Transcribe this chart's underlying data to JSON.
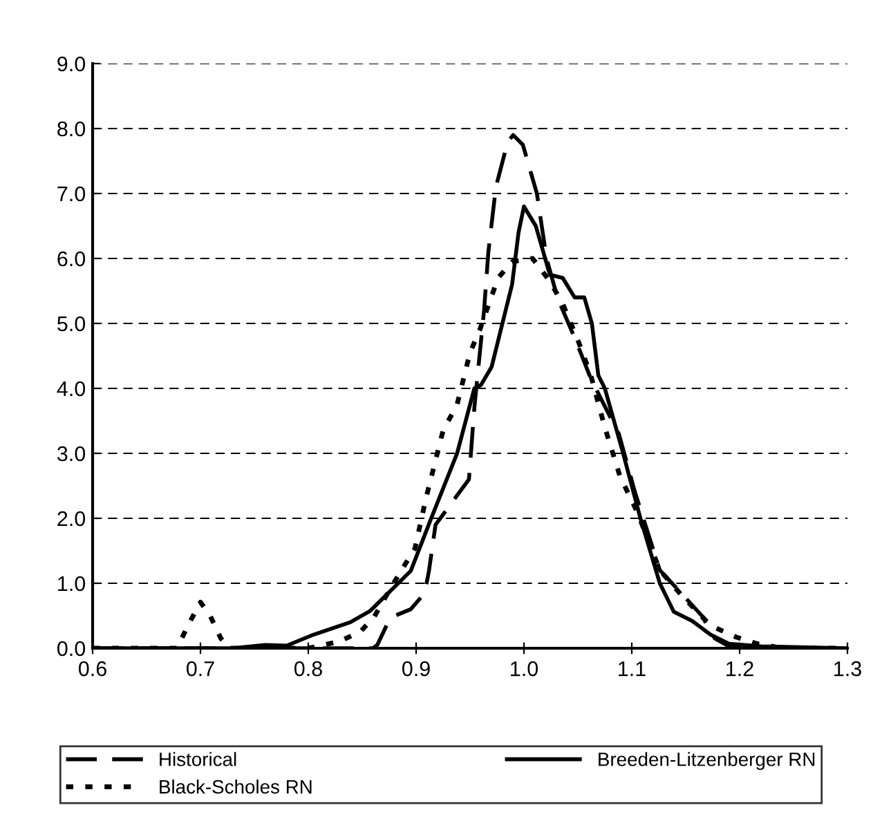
{
  "chart_data": {
    "type": "line",
    "xlim": [
      0.6,
      1.3
    ],
    "xticks": [
      {
        "value": 0.6,
        "label": "0.6"
      },
      {
        "value": 0.7,
        "label": "0.7"
      },
      {
        "value": 0.8,
        "label": "0.8"
      },
      {
        "value": 0.9,
        "label": "0.9"
      },
      {
        "value": 1.0,
        "label": "1.0"
      },
      {
        "value": 1.1,
        "label": "1.1"
      },
      {
        "value": 1.2,
        "label": "1.2"
      },
      {
        "value": 1.3,
        "label": "1.3"
      }
    ],
    "ylim": [
      0,
      9
    ],
    "yticks": [
      {
        "value": 0,
        "label": "0.0"
      },
      {
        "value": 1,
        "label": "1.0"
      },
      {
        "value": 2,
        "label": "2.0"
      },
      {
        "value": 3,
        "label": "3.0"
      },
      {
        "value": 4,
        "label": "4.0"
      },
      {
        "value": 5,
        "label": "5.0"
      },
      {
        "value": 6,
        "label": "6.0"
      },
      {
        "value": 7,
        "label": "7.0"
      },
      {
        "value": 8,
        "label": "8.0"
      },
      {
        "value": 9,
        "label": "9.0"
      }
    ],
    "grid": "y",
    "legend": "bottom",
    "marker": "none",
    "series": [
      {
        "name": "Historical",
        "color": "#000000",
        "line_style": "dashed",
        "x": [
          0.6,
          0.86,
          0.864,
          0.876,
          0.895,
          0.908,
          0.912,
          0.918,
          0.949,
          0.954,
          0.963,
          0.967,
          0.974,
          0.985,
          0.99,
          0.999,
          1.012,
          1.021,
          1.031,
          1.049,
          1.062,
          1.088,
          1.103,
          1.126,
          1.143,
          1.165,
          1.177,
          1.19,
          1.22,
          1.3
        ],
        "values": [
          0,
          0,
          0.05,
          0.47,
          0.6,
          0.85,
          1.2,
          1.9,
          2.6,
          3.7,
          5.2,
          6.1,
          7.1,
          7.8,
          7.9,
          7.75,
          7.0,
          6.0,
          5.4,
          4.7,
          4.15,
          3.3,
          2.4,
          1.2,
          0.9,
          0.5,
          0.15,
          0.03,
          0,
          0
        ]
      },
      {
        "name": "Breeden-Litzenberger RN",
        "color": "#000000",
        "line_style": "solid",
        "x": [
          0.6,
          0.73,
          0.76,
          0.78,
          0.805,
          0.839,
          0.857,
          0.873,
          0.895,
          0.914,
          0.938,
          0.954,
          0.96,
          0.97,
          0.989,
          0.995,
          1.0,
          1.011,
          1.024,
          1.036,
          1.047,
          1.056,
          1.063,
          1.069,
          1.075,
          1.092,
          1.108,
          1.126,
          1.139,
          1.156,
          1.173,
          1.19,
          1.22,
          1.3
        ],
        "values": [
          0,
          0,
          0.05,
          0.04,
          0.21,
          0.4,
          0.57,
          0.83,
          1.19,
          2.0,
          3.0,
          4.0,
          4.05,
          4.33,
          5.6,
          6.4,
          6.8,
          6.5,
          5.75,
          5.7,
          5.4,
          5.4,
          5.0,
          4.2,
          4.0,
          3.0,
          2.0,
          1.0,
          0.56,
          0.42,
          0.21,
          0.07,
          0.03,
          0
        ]
      },
      {
        "name": "Black-Scholes RN",
        "color": "#000000",
        "line_style": "dotted",
        "x": [
          0.6,
          0.678,
          0.691,
          0.7,
          0.709,
          0.719,
          0.727,
          0.8,
          0.828,
          0.848,
          0.861,
          0.873,
          0.886,
          0.899,
          0.909,
          0.925,
          0.938,
          0.95,
          0.959,
          0.976,
          0.989,
          1.008,
          1.024,
          1.036,
          1.051,
          1.062,
          1.075,
          1.089,
          1.105,
          1.126,
          1.147,
          1.173,
          1.197,
          1.216,
          1.24,
          1.3
        ],
        "values": [
          0,
          0,
          0.43,
          0.71,
          0.5,
          0.15,
          0,
          0,
          0.1,
          0.25,
          0.48,
          0.83,
          1.19,
          1.54,
          2.3,
          3.35,
          3.75,
          4.55,
          4.9,
          5.7,
          5.95,
          6.0,
          5.65,
          5.3,
          4.7,
          4.2,
          3.4,
          2.65,
          2.1,
          1.2,
          0.8,
          0.35,
          0.17,
          0.07,
          0,
          0
        ]
      }
    ]
  }
}
